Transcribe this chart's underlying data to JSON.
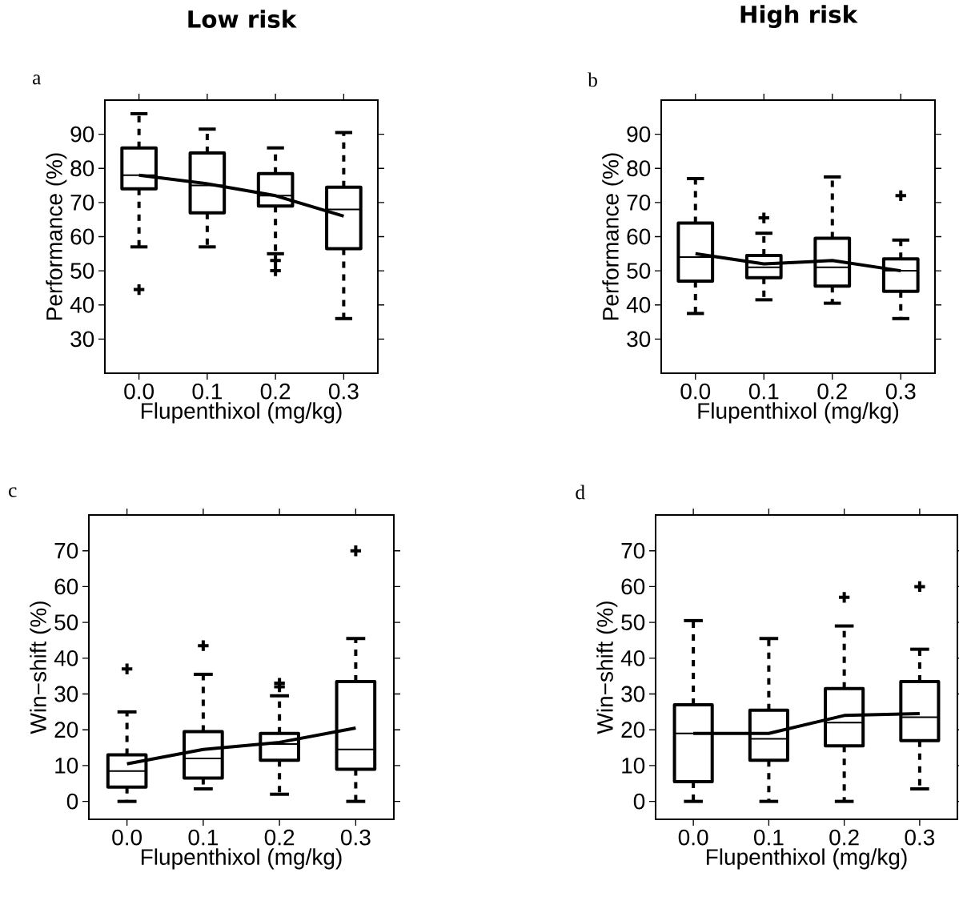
{
  "chart_data": [
    {
      "type": "box",
      "title": "Low risk",
      "annotations": [
        "a"
      ],
      "xlabel": "Flupenthixol (mg/kg)",
      "ylabel": "Performance (%)",
      "categories": [
        "0.0",
        "0.1",
        "0.2",
        "0.3"
      ],
      "ylim": [
        20,
        100
      ],
      "yticks": [
        30,
        40,
        50,
        60,
        70,
        80,
        90
      ],
      "series": [
        {
          "color": "#000000",
          "boxes": [
            {
              "low": 57,
              "q1": 74,
              "median": 78,
              "q3": 86,
              "high": 96,
              "outliers": [
                44.5
              ]
            },
            {
              "low": 57,
              "q1": 67,
              "median": 75,
              "q3": 84.5,
              "high": 91.5
            },
            {
              "low": 55,
              "q1": 69,
              "median": 72,
              "q3": 78.5,
              "high": 86,
              "outliers": [
                53,
                50
              ]
            },
            {
              "low": 36,
              "q1": 56.5,
              "median": 68,
              "q3": 74.5,
              "high": 90.5
            }
          ]
        },
        {
          "type": "line",
          "color": "#000000",
          "values": [
            78,
            75.5,
            72,
            66
          ]
        }
      ]
    },
    {
      "type": "box",
      "title": "High risk",
      "annotations": [
        "b"
      ],
      "xlabel": "Flupenthixol (mg/kg)",
      "ylabel": "Performance (%)",
      "categories": [
        "0.0",
        "0.1",
        "0.2",
        "0.3"
      ],
      "ylim": [
        20,
        100
      ],
      "yticks": [
        30,
        40,
        50,
        60,
        70,
        80,
        90
      ],
      "series": [
        {
          "color": "#000000",
          "boxes": [
            {
              "low": 37.5,
              "q1": 47,
              "median": 54,
              "q3": 64,
              "high": 77
            },
            {
              "low": 41.5,
              "q1": 48,
              "median": 51,
              "q3": 54.5,
              "high": 61,
              "outliers": [
                65.5
              ]
            },
            {
              "low": 40.5,
              "q1": 45.5,
              "median": 51,
              "q3": 59.5,
              "high": 77.5
            },
            {
              "low": 36,
              "q1": 44,
              "median": 50,
              "q3": 53.5,
              "high": 59,
              "outliers": [
                72
              ]
            }
          ]
        },
        {
          "type": "line",
          "color": "#000000",
          "values": [
            55,
            52,
            53,
            50
          ]
        }
      ]
    },
    {
      "type": "box",
      "annotations": [
        "c"
      ],
      "xlabel": "Flupenthixol (mg/kg)",
      "ylabel": "Win−shift (%)",
      "categories": [
        "0.0",
        "0.1",
        "0.2",
        "0.3"
      ],
      "ylim": [
        -5,
        80
      ],
      "yticks": [
        0,
        10,
        20,
        30,
        40,
        50,
        60,
        70
      ],
      "series": [
        {
          "color": "#000000",
          "boxes": [
            {
              "low": 0,
              "q1": 4,
              "median": 8.5,
              "q3": 13,
              "high": 25,
              "outliers": [
                37
              ]
            },
            {
              "low": 3.5,
              "q1": 6.5,
              "median": 12,
              "q3": 19.5,
              "high": 35.5,
              "outliers": [
                43.5
              ]
            },
            {
              "low": 2,
              "q1": 11.5,
              "median": 16,
              "q3": 19,
              "high": 29.5,
              "outliers": [
                33,
                32
              ]
            },
            {
              "low": 0,
              "q1": 9,
              "median": 14.5,
              "q3": 33.5,
              "high": 45.5,
              "outliers": [
                70
              ]
            }
          ]
        },
        {
          "type": "line",
          "color": "#000000",
          "values": [
            10.5,
            14.5,
            16.5,
            20.5
          ]
        }
      ]
    },
    {
      "type": "box",
      "annotations": [
        "d"
      ],
      "xlabel": "Flupenthixol (mg/kg)",
      "ylabel": "Win−shift (%)",
      "categories": [
        "0.0",
        "0.1",
        "0.2",
        "0.3"
      ],
      "ylim": [
        -5,
        80
      ],
      "yticks": [
        0,
        10,
        20,
        30,
        40,
        50,
        60,
        70
      ],
      "series": [
        {
          "color": "#000000",
          "boxes": [
            {
              "low": 0,
              "q1": 5.5,
              "median": 19,
              "q3": 27,
              "high": 50.5
            },
            {
              "low": 0,
              "q1": 11.5,
              "median": 17.5,
              "q3": 25.5,
              "high": 45.5
            },
            {
              "low": 0,
              "q1": 15.5,
              "median": 22,
              "q3": 31.5,
              "high": 49,
              "outliers": [
                57
              ]
            },
            {
              "low": 3.5,
              "q1": 17,
              "median": 23.5,
              "q3": 33.5,
              "high": 42.5,
              "outliers": [
                60
              ]
            }
          ]
        },
        {
          "type": "line",
          "color": "#000000",
          "values": [
            19,
            19,
            24,
            24.5
          ]
        }
      ]
    }
  ]
}
